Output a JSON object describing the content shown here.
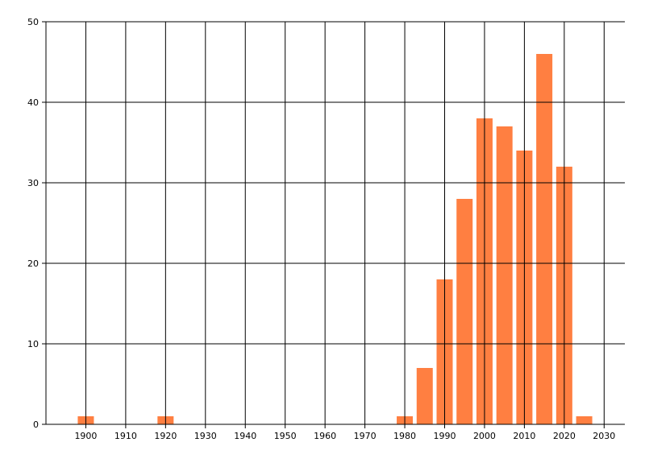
{
  "chart_data": {
    "type": "bar",
    "title": "",
    "xlabel": "",
    "ylabel": "",
    "x": [
      1900,
      1920,
      1980,
      1985,
      1990,
      1995,
      2000,
      2005,
      2010,
      2015,
      2020,
      2025
    ],
    "values": [
      1,
      1,
      1,
      7,
      18,
      28,
      38,
      37,
      34,
      46,
      32,
      1
    ],
    "xlim": [
      1890,
      2035
    ],
    "ylim": [
      0,
      50
    ],
    "x_ticks": [
      1900,
      1910,
      1920,
      1930,
      1940,
      1950,
      1960,
      1970,
      1980,
      1990,
      2000,
      2010,
      2020,
      2030
    ],
    "y_ticks": [
      0,
      10,
      20,
      30,
      40,
      50
    ],
    "grid": true,
    "bar_color": "#FF7F41",
    "grid_color": "#000000"
  }
}
